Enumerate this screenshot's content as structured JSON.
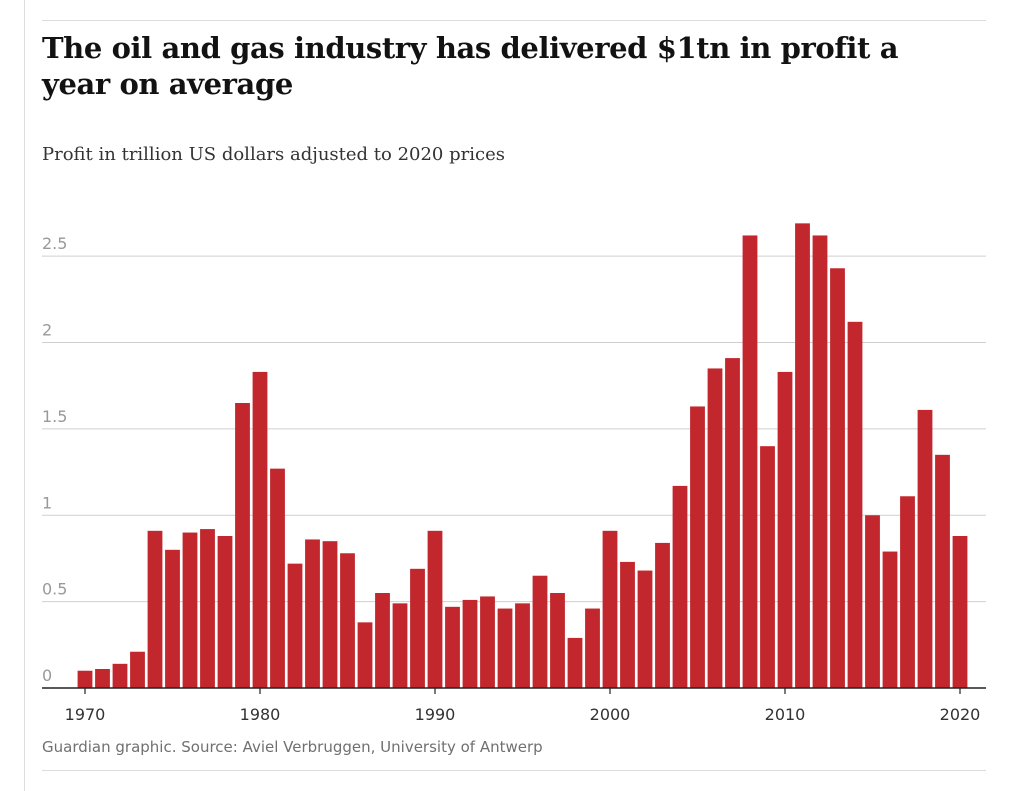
{
  "title": "The oil and gas industry has delivered $1tn in profit a year on average",
  "subtitle": "Profit in trillion US dollars adjusted to 2020 prices",
  "source": "Guardian graphic. Source: Aviel Verbruggen, University of Antwerp",
  "colors": {
    "bar": "#c1272d",
    "grid": "#cfcfcf",
    "axis": "#222222",
    "tick_label": "#999999"
  },
  "chart_data": {
    "type": "bar",
    "title": "The oil and gas industry has delivered $1tn in profit a year on average",
    "ylabel": "Profit in trillion US dollars adjusted to 2020 prices",
    "xlabel": "",
    "grid": true,
    "ylim": [
      0,
      2.75
    ],
    "xlim": [
      1969,
      2021
    ],
    "y_ticks": [
      0,
      0.5,
      1,
      1.5,
      2,
      2.5
    ],
    "y_tick_labels": [
      "0",
      "0.5",
      "1",
      "1.5",
      "2",
      "2.5"
    ],
    "x_ticks": [
      1970,
      1980,
      1990,
      2000,
      2010,
      2020
    ],
    "x_tick_labels": [
      "1970",
      "1980",
      "1990",
      "2000",
      "2010",
      "2020"
    ],
    "years": [
      1970,
      1971,
      1972,
      1973,
      1974,
      1975,
      1976,
      1977,
      1978,
      1979,
      1980,
      1981,
      1982,
      1983,
      1984,
      1985,
      1986,
      1987,
      1988,
      1989,
      1990,
      1991,
      1992,
      1993,
      1994,
      1995,
      1996,
      1997,
      1998,
      1999,
      2000,
      2001,
      2002,
      2003,
      2004,
      2005,
      2006,
      2007,
      2008,
      2009,
      2010,
      2011,
      2012,
      2013,
      2014,
      2015,
      2016,
      2017,
      2018,
      2019,
      2020
    ],
    "values": [
      0.1,
      0.11,
      0.14,
      0.21,
      0.91,
      0.8,
      0.9,
      0.92,
      0.88,
      1.65,
      1.83,
      1.27,
      0.72,
      0.86,
      0.85,
      0.78,
      0.38,
      0.55,
      0.49,
      0.69,
      0.91,
      0.47,
      0.51,
      0.53,
      0.46,
      0.49,
      0.65,
      0.55,
      0.29,
      0.46,
      0.91,
      0.73,
      0.68,
      0.84,
      1.17,
      1.63,
      1.85,
      1.91,
      2.62,
      1.4,
      1.83,
      2.69,
      2.62,
      2.43,
      2.12,
      1.0,
      0.79,
      1.11,
      1.61,
      1.35,
      0.88
    ]
  }
}
